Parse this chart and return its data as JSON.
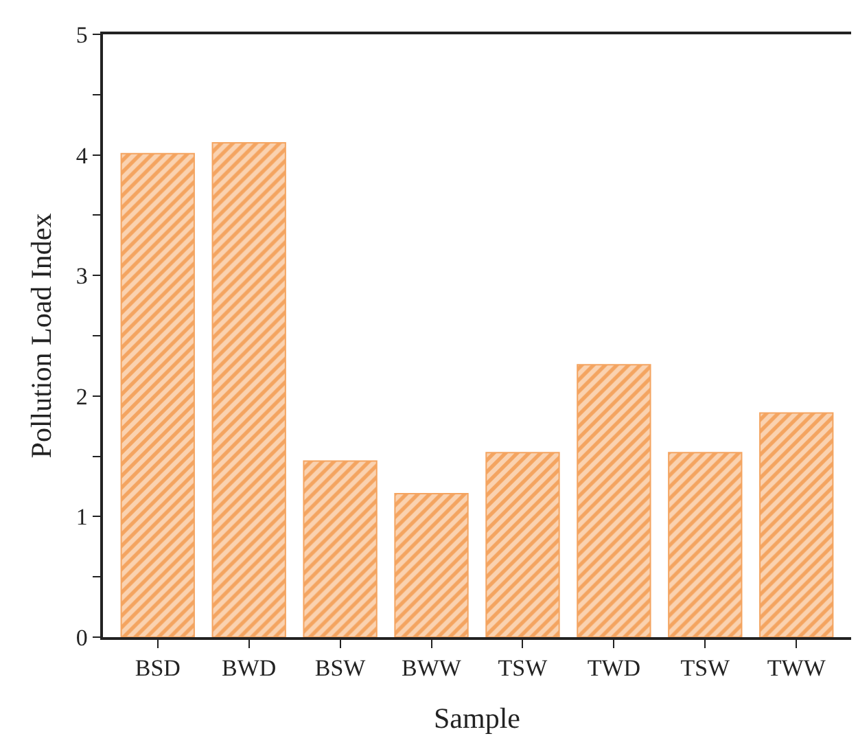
{
  "chart_data": {
    "type": "bar",
    "xlabel": "Sample",
    "ylabel": "Pollution Load Index",
    "categories": [
      "BSD",
      "BWD",
      "BSW",
      "BWW",
      "TSW",
      "TWD",
      "TSW",
      "TWW"
    ],
    "values": [
      4.01,
      4.1,
      1.46,
      1.19,
      1.53,
      2.26,
      1.53,
      1.86
    ],
    "color": "#f4a460",
    "ylim": [
      0,
      5
    ],
    "yticks": [
      0,
      {
        "value": 0.5,
        "label": null
      },
      1,
      {
        "value": 1.5,
        "label": null
      },
      2,
      {
        "value": 2.5,
        "label": null
      },
      3,
      {
        "value": 3.5,
        "label": null
      },
      4,
      {
        "value": 4.5,
        "label": null
      },
      5
    ],
    "grid": false
  }
}
